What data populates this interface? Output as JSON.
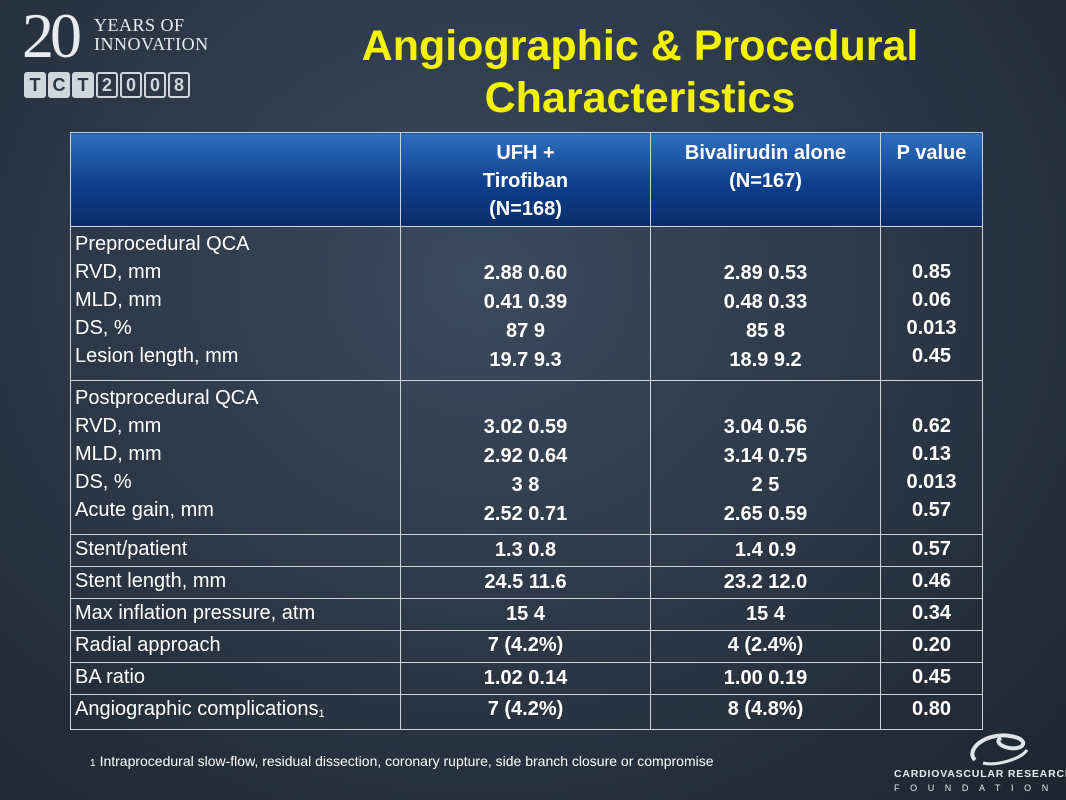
{
  "logo": {
    "big": "20",
    "tagline_1": "YEARS OF",
    "tagline_2": "INNOVATION",
    "letters": [
      "T",
      "C",
      "T",
      "2",
      "0",
      "0",
      "8"
    ]
  },
  "title": {
    "line1": "Angiographic & Procedural",
    "line2": "Characteristics"
  },
  "table": {
    "headers": {
      "label": "",
      "col1": [
        "UFH +",
        "Tirofiban",
        "(N=168)"
      ],
      "col2": [
        "Bivalirudin alone",
        "(N=167)"
      ],
      "col3": "P value"
    },
    "pre": {
      "heading": "Preprocedural QCA",
      "rows": [
        {
          "label": "RVD, mm",
          "a": "2.88  0.60",
          "b": "2.89  0.53",
          "p": "0.85"
        },
        {
          "label": "MLD, mm",
          "a": "0.41  0.39",
          "b": "0.48  0.33",
          "p": "0.06"
        },
        {
          "label": "DS, %",
          "a": "87  9",
          "b": "85  8",
          "p": "0.013"
        },
        {
          "label": "Lesion length, mm",
          "a": "19.7  9.3",
          "b": "18.9  9.2",
          "p": "0.45"
        }
      ]
    },
    "post": {
      "heading": "Postprocedural QCA",
      "rows": [
        {
          "label": "RVD, mm",
          "a": "3.02  0.59",
          "b": "3.04  0.56",
          "p": "0.62"
        },
        {
          "label": "MLD, mm",
          "a": "2.92  0.64",
          "b": "3.14  0.75",
          "p": "0.13"
        },
        {
          "label": "DS, %",
          "a": "3  8",
          "b": "2  5",
          "p": "0.013"
        },
        {
          "label": "Acute gain, mm",
          "a": "2.52  0.71",
          "b": "2.65  0.59",
          "p": "0.57"
        }
      ]
    },
    "singles": [
      {
        "label": "Stent/patient",
        "a": "1.3  0.8",
        "b": "1.4  0.9",
        "p": "0.57"
      },
      {
        "label": "Stent length, mm",
        "a": "24.5  11.6",
        "b": "23.2  12.0",
        "p": "0.46"
      },
      {
        "label": "Max inflation pressure, atm",
        "a": "15  4",
        "b": "15  4",
        "p": "0.34"
      },
      {
        "label": "Radial approach",
        "a": "7 (4.2%)",
        "b": "4 (2.4%)",
        "p": "0.20"
      },
      {
        "label": "BA ratio",
        "a": "1.02  0.14",
        "b": "1.00  0.19",
        "p": "0.45"
      },
      {
        "label": "Angiographic complications",
        "a": "7 (4.2%)",
        "b": "8 (4.8%)",
        "p": "0.80"
      }
    ],
    "complications_mark": "1"
  },
  "footnote": {
    "mark": "1",
    "text": "Intraprocedural  slow-flow,  residual  dissection,  coronary  rupture,  side  branch  closure  or compromise"
  },
  "crf": {
    "line1": "CARDIOVASCULAR RESEARCH",
    "line2": "FOUNDATION"
  }
}
